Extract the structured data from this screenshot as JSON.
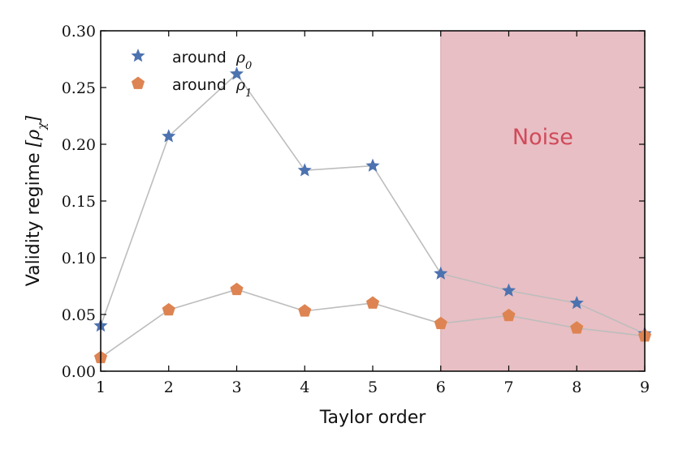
{
  "chart_data": {
    "type": "line",
    "xlabel": "Taylor order",
    "ylabel": "Validity regime",
    "ylabel_symbol": "ρ",
    "ylabel_subscript": "χ",
    "xlim": [
      1,
      9
    ],
    "ylim": [
      0,
      0.3
    ],
    "xticks": [
      "1",
      "2",
      "3",
      "4",
      "5",
      "6",
      "7",
      "8",
      "9"
    ],
    "yticks": [
      "0.00",
      "0.05",
      "0.10",
      "0.15",
      "0.20",
      "0.25",
      "0.30"
    ],
    "grid": false,
    "legend_position": "top-left",
    "x": [
      1,
      2,
      3,
      4,
      5,
      6,
      7,
      8,
      9
    ],
    "series": [
      {
        "name": "around",
        "name_symbol": "ρ",
        "name_subscript": "0",
        "marker": "star",
        "color": "#4C72B0",
        "values": [
          0.04,
          0.207,
          0.262,
          0.177,
          0.181,
          0.086,
          0.071,
          0.06,
          0.033
        ]
      },
      {
        "name": "around",
        "name_symbol": "ρ",
        "name_subscript": "1",
        "marker": "pentagon",
        "color": "#DD8452",
        "values": [
          0.012,
          0.054,
          0.072,
          0.053,
          0.06,
          0.042,
          0.049,
          0.038,
          0.031
        ]
      }
    ],
    "line_color": "#BDBDBD",
    "annotations": [
      {
        "text": "Noise",
        "x_start": 6,
        "x_end": 9,
        "fill": "#E8BFC4",
        "text_color": "#D04A5A"
      }
    ]
  }
}
